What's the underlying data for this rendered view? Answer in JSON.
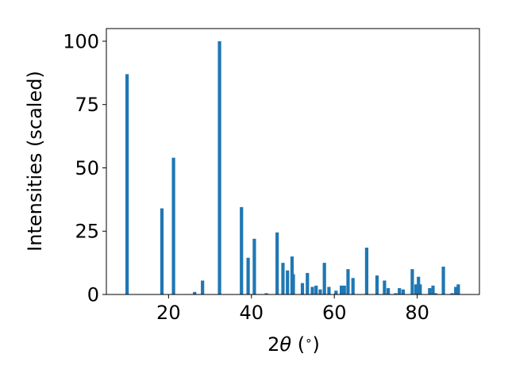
{
  "chart_data": {
    "type": "bar",
    "xlabel_parts": [
      "2",
      "θ",
      " (",
      "∘",
      ")"
    ],
    "ylabel": "Intensities (scaled)",
    "xlim": [
      5,
      95
    ],
    "ylim": [
      0,
      105
    ],
    "xticks": [
      20,
      40,
      60,
      80
    ],
    "yticks": [
      0,
      25,
      50,
      75,
      100
    ],
    "grid": false,
    "bar_color": "#1f77b4",
    "x": [
      10.0,
      18.4,
      21.2,
      26.3,
      28.2,
      32.3,
      37.6,
      39.2,
      40.7,
      43.6,
      46.2,
      47.6,
      48.7,
      49.8,
      50.1,
      52.3,
      53.5,
      54.7,
      55.6,
      56.6,
      57.6,
      58.7,
      60.4,
      61.7,
      62.4,
      63.3,
      64.5,
      67.8,
      70.3,
      72.1,
      73.0,
      74.8,
      75.7,
      76.6,
      78.8,
      79.7,
      80.3,
      80.7,
      83.0,
      83.8,
      84.4,
      86.3,
      88.4,
      89.3,
      89.9
    ],
    "y": [
      87,
      34,
      54,
      1,
      5.5,
      100,
      34.5,
      14.5,
      22,
      0.5,
      24.5,
      12.5,
      9.5,
      15,
      8,
      4.5,
      8.5,
      3,
      3.5,
      2,
      12.5,
      3,
      1.5,
      3.5,
      3.5,
      10,
      6.5,
      18.5,
      7.5,
      5.5,
      2.5,
      0.5,
      2.5,
      2,
      10,
      4,
      7,
      4,
      2.5,
      3.5,
      0.5,
      11,
      0.5,
      3,
      4
    ]
  }
}
